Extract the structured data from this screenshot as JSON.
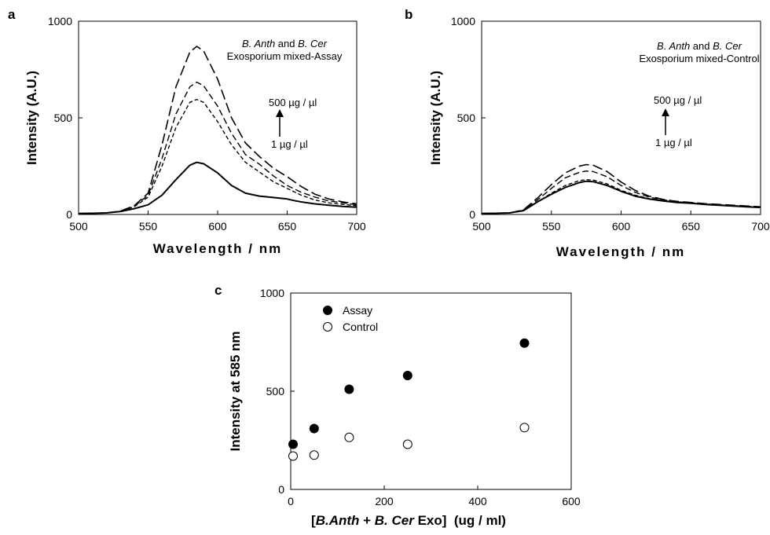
{
  "chart_data": [
    {
      "panel": "a",
      "type": "line",
      "xlabel": "Wavelength / nm",
      "ylabel": "Intensity (A.U.)",
      "xlim": [
        500,
        700
      ],
      "ylim": [
        0,
        1000
      ],
      "xticks": [
        500,
        550,
        600,
        650,
        700
      ],
      "yticks": [
        0,
        500,
        1000
      ],
      "grid": false,
      "annotation": {
        "line1_italic_1": "B. Anth",
        "line1_and": " and ",
        "line1_italic_2": "B. Cer",
        "line2": "Exosporium mixed-Assay",
        "arrow_top": "500 µg / µl",
        "arrow_bottom": "1 µg / µl"
      },
      "series": [
        {
          "dash": "solid",
          "x": [
            500,
            510,
            520,
            530,
            540,
            550,
            560,
            570,
            580,
            585,
            590,
            600,
            610,
            620,
            630,
            640,
            650,
            655,
            660,
            670,
            680,
            690,
            700
          ],
          "y": [
            5,
            6,
            8,
            15,
            30,
            50,
            100,
            180,
            255,
            270,
            262,
            215,
            150,
            110,
            95,
            88,
            80,
            72,
            65,
            55,
            48,
            42,
            38
          ]
        },
        {
          "dash": "dash-short",
          "x": [
            500,
            510,
            520,
            530,
            540,
            550,
            560,
            570,
            580,
            585,
            590,
            600,
            610,
            620,
            630,
            640,
            650,
            660,
            670,
            680,
            690,
            700
          ],
          "y": [
            5,
            6,
            8,
            16,
            40,
            90,
            250,
            450,
            580,
            595,
            580,
            480,
            360,
            270,
            220,
            170,
            135,
            100,
            75,
            60,
            52,
            45
          ]
        },
        {
          "dash": "dash-medium",
          "x": [
            500,
            510,
            520,
            530,
            540,
            550,
            560,
            570,
            580,
            585,
            590,
            600,
            610,
            620,
            630,
            640,
            650,
            660,
            670,
            680,
            690,
            700
          ],
          "y": [
            5,
            6,
            8,
            16,
            42,
            100,
            290,
            520,
            660,
            685,
            665,
            560,
            420,
            310,
            260,
            200,
            150,
            115,
            90,
            70,
            60,
            50
          ]
        },
        {
          "dash": "dash-long",
          "x": [
            500,
            510,
            520,
            530,
            540,
            550,
            560,
            570,
            580,
            585,
            590,
            600,
            610,
            620,
            630,
            640,
            650,
            660,
            670,
            680,
            690,
            700
          ],
          "y": [
            5,
            6,
            8,
            17,
            45,
            110,
            360,
            660,
            840,
            870,
            845,
            700,
            500,
            370,
            300,
            240,
            195,
            145,
            105,
            80,
            65,
            55
          ]
        }
      ]
    },
    {
      "panel": "b",
      "type": "line",
      "xlabel": "Wavelength / nm",
      "ylabel": "Intensity (A.U.)",
      "xlim": [
        500,
        700
      ],
      "ylim": [
        0,
        1000
      ],
      "xticks": [
        500,
        550,
        600,
        650,
        700
      ],
      "yticks": [
        0,
        500,
        1000
      ],
      "grid": false,
      "annotation": {
        "line1_italic_1": "B. Anth",
        "line1_and": " and ",
        "line1_italic_2": "B. Cer",
        "line2": "Exosporium mixed-Control",
        "arrow_top": "500 µg / µl",
        "arrow_bottom": "1 µg / µl"
      },
      "series": [
        {
          "dash": "solid",
          "x": [
            500,
            510,
            520,
            530,
            540,
            550,
            560,
            570,
            575,
            580,
            590,
            600,
            610,
            620,
            630,
            640,
            650,
            660,
            670,
            680,
            690,
            700
          ],
          "y": [
            5,
            6,
            8,
            20,
            65,
            105,
            140,
            165,
            172,
            170,
            150,
            120,
            95,
            80,
            70,
            62,
            58,
            52,
            48,
            44,
            40,
            36
          ]
        },
        {
          "dash": "dash-short",
          "x": [
            500,
            510,
            520,
            530,
            540,
            550,
            560,
            570,
            575,
            580,
            590,
            600,
            610,
            620,
            630,
            640,
            650,
            660,
            670,
            680,
            690,
            700
          ],
          "y": [
            5,
            6,
            8,
            20,
            65,
            110,
            150,
            175,
            180,
            178,
            158,
            125,
            100,
            82,
            72,
            64,
            60,
            54,
            50,
            46,
            42,
            38
          ]
        },
        {
          "dash": "dash-medium",
          "x": [
            500,
            510,
            520,
            530,
            540,
            550,
            560,
            570,
            575,
            580,
            590,
            600,
            610,
            620,
            630,
            640,
            650,
            660,
            670,
            680,
            690,
            700
          ],
          "y": [
            5,
            6,
            8,
            22,
            75,
            135,
            190,
            218,
            225,
            222,
            195,
            150,
            115,
            90,
            76,
            66,
            60,
            55,
            50,
            46,
            42,
            38
          ]
        },
        {
          "dash": "dash-long",
          "x": [
            500,
            510,
            520,
            530,
            540,
            550,
            560,
            570,
            575,
            580,
            590,
            600,
            610,
            620,
            630,
            640,
            650,
            660,
            670,
            680,
            690,
            700
          ],
          "y": [
            5,
            6,
            8,
            24,
            85,
            155,
            215,
            250,
            258,
            255,
            222,
            168,
            125,
            95,
            78,
            68,
            62,
            56,
            52,
            48,
            44,
            40
          ]
        }
      ]
    },
    {
      "panel": "c",
      "type": "scatter",
      "xlabel_bracket_open": "[",
      "xlabel_italic_1": "B.Anth",
      "xlabel_plus": " + ",
      "xlabel_italic_2": "B. Cer",
      "xlabel_rest": " Exo]  (ug / ml)",
      "ylabel": "Intensity at 585 nm",
      "xlim": [
        0,
        600
      ],
      "ylim": [
        0,
        1000
      ],
      "xticks": [
        0,
        200,
        400,
        600
      ],
      "yticks": [
        0,
        500,
        1000
      ],
      "grid": false,
      "legend_position": "top-left",
      "series": [
        {
          "name": "Assay",
          "marker": "filled-circle",
          "x": [
            5,
            50,
            125,
            250,
            500
          ],
          "y": [
            230,
            310,
            510,
            580,
            745
          ]
        },
        {
          "name": "Control",
          "marker": "open-circle",
          "x": [
            5,
            50,
            125,
            250,
            500
          ],
          "y": [
            170,
            175,
            265,
            230,
            315
          ]
        }
      ]
    }
  ]
}
